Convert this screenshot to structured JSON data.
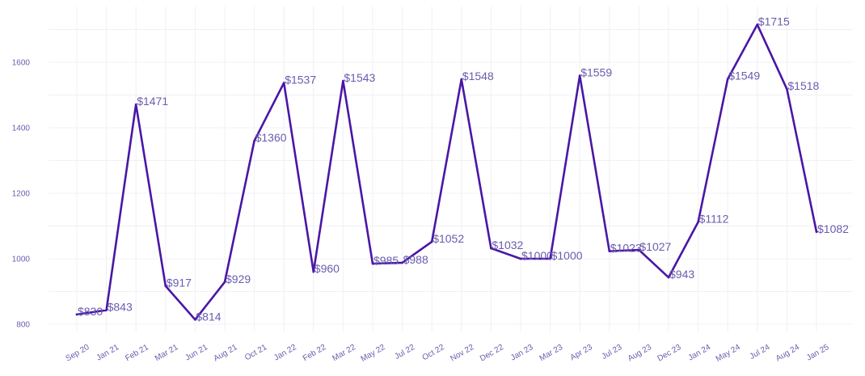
{
  "colors": {
    "line": "#4a16a6",
    "label": "#6a5cae",
    "tick": "#6a5cae",
    "grid": "#f0f0f4",
    "background": "#ffffff"
  },
  "chart_data": {
    "type": "line",
    "title": "",
    "xlabel": "",
    "ylabel": "",
    "grid": true,
    "legend": "none",
    "ylim": [
      770,
      1760
    ],
    "y_ticks": [
      800,
      1000,
      1200,
      1400,
      1600
    ],
    "y_tick_labels": [
      "800",
      "1000",
      "1200",
      "1400",
      "1600"
    ],
    "categories": [
      "Sep 20",
      "Jan 21",
      "Feb 21",
      "Mar 21",
      "Jun 21",
      "Aug 21",
      "Oct 21",
      "Jan 22",
      "Feb 22",
      "Mar 22",
      "May 22",
      "Jul 22",
      "Oct 22",
      "Nov 22",
      "Dec 22",
      "Jan 23",
      "Mar 23",
      "Apr 23",
      "Jul 23",
      "Aug 23",
      "Dec 23",
      "Jan 24",
      "May 24",
      "Jul 24",
      "Aug 24",
      "Jan 25"
    ],
    "series": [
      {
        "values": [
          830,
          843,
          1471,
          917,
          814,
          929,
          1360,
          1537,
          960,
          1543,
          985,
          988,
          1052,
          1548,
          1032,
          1000,
          1000,
          1559,
          1023,
          1027,
          943,
          1112,
          1549,
          1715,
          1518,
          1082
        ],
        "labels": [
          "$830",
          "$843",
          "$1471",
          "$917",
          "$814",
          "$929",
          "$1360",
          "$1537",
          "$960",
          "$1543",
          "$985",
          "$988",
          "$1052",
          "$1548",
          "$1032",
          "$1000",
          "$1000",
          "$1559",
          "$1023",
          "$1027",
          "$943",
          "$1112",
          "$1549",
          "$1715",
          "$1518",
          "$1082"
        ]
      }
    ]
  }
}
